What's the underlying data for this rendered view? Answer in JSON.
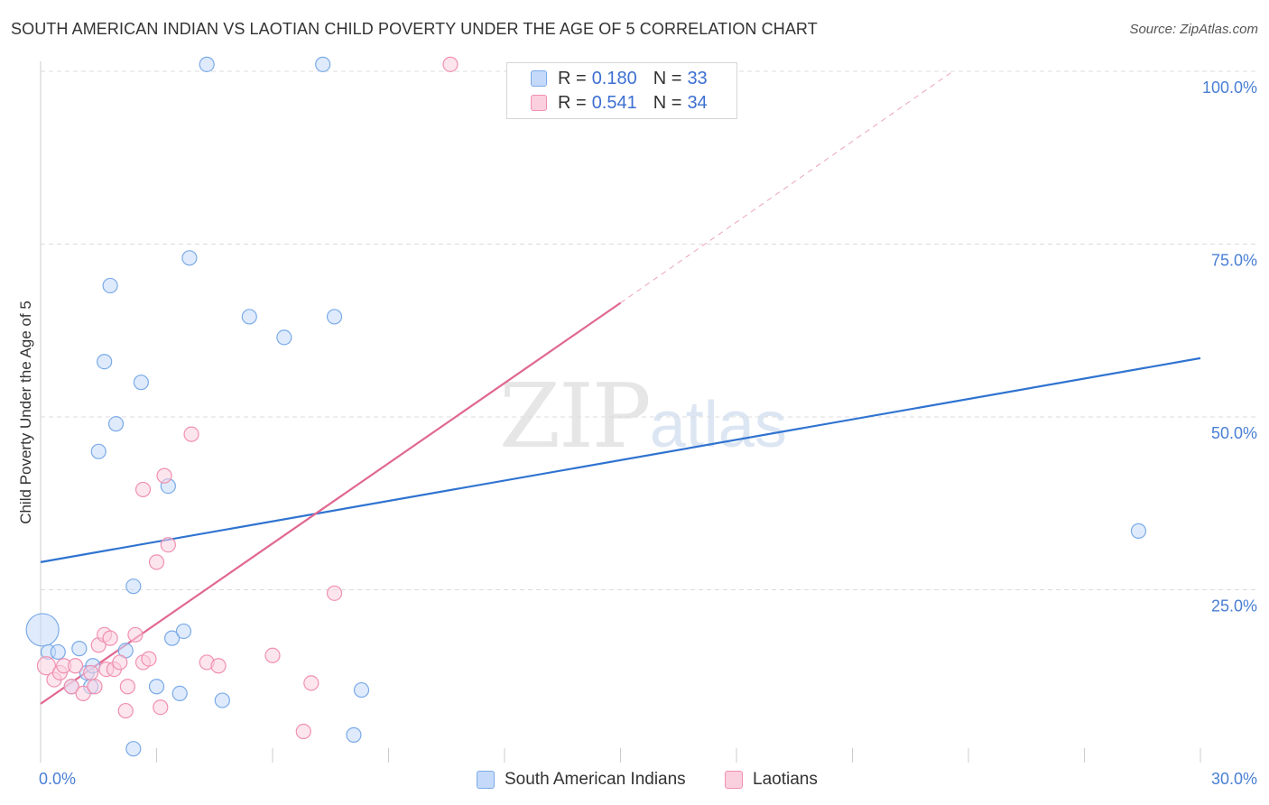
{
  "header": {
    "title": "SOUTH AMERICAN INDIAN VS LAOTIAN CHILD POVERTY UNDER THE AGE OF 5 CORRELATION CHART",
    "source": "Source: ZipAtlas.com"
  },
  "watermark": {
    "zip": "ZIP",
    "atlas": "atlas"
  },
  "legend": {
    "rows": [
      {
        "r_label": "R =",
        "r_value": "0.180",
        "n_label": "N =",
        "n_value": "33",
        "color": "#7aaae8",
        "fill": "#c5dafa"
      },
      {
        "r_label": "R =",
        "r_value": "0.541",
        "n_label": "N =",
        "n_value": "34",
        "color": "#f090b0",
        "fill": "#fbd0de"
      }
    ]
  },
  "bottom_legend": [
    {
      "label": "South American Indians",
      "color": "#7aaae8",
      "fill": "#c5dafa"
    },
    {
      "label": "Laotians",
      "color": "#f090b0",
      "fill": "#fbd0de"
    }
  ],
  "chart_data": {
    "type": "scatter",
    "title": "SOUTH AMERICAN INDIAN VS LAOTIAN CHILD POVERTY UNDER THE AGE OF 5 CORRELATION CHART",
    "xlabel": "",
    "ylabel": "Child Poverty Under the Age of 5",
    "xlim": [
      0,
      30
    ],
    "ylim": [
      0,
      100
    ],
    "x_tick_labels": [
      {
        "value": 0,
        "label": "0.0%"
      },
      {
        "value": 30,
        "label": "30.0%"
      }
    ],
    "y_tick_labels": [
      {
        "value": 25,
        "label": "25.0%"
      },
      {
        "value": 50,
        "label": "50.0%"
      },
      {
        "value": 75,
        "label": "75.0%"
      },
      {
        "value": 100,
        "label": "100.0%"
      }
    ],
    "grid": true,
    "series": [
      {
        "name": "South American Indians",
        "color": "#7aaae8",
        "fill": "#c5dafa",
        "line_color": "#2f73d0",
        "trend": {
          "x": [
            0,
            30
          ],
          "y": [
            29,
            58.5
          ],
          "dashed_extension": false
        },
        "points": [
          [
            0.05,
            19.2,
            18
          ],
          [
            0.2,
            16,
            8
          ],
          [
            0.45,
            16,
            8
          ],
          [
            1.0,
            16.5,
            8
          ],
          [
            0.8,
            11,
            8
          ],
          [
            1.2,
            13,
            8
          ],
          [
            1.3,
            11,
            8
          ],
          [
            1.35,
            14,
            8
          ],
          [
            2.2,
            16.2,
            8
          ],
          [
            3.0,
            11,
            8
          ],
          [
            3.6,
            10,
            8
          ],
          [
            2.4,
            2,
            8
          ],
          [
            4.7,
            9,
            8
          ],
          [
            8.1,
            4,
            8
          ],
          [
            8.3,
            10.5,
            8
          ],
          [
            3.4,
            18,
            8
          ],
          [
            3.3,
            40,
            8
          ],
          [
            3.7,
            19,
            8
          ],
          [
            2.4,
            25.5,
            8
          ],
          [
            1.5,
            45,
            8
          ],
          [
            1.95,
            49,
            8
          ],
          [
            1.65,
            58,
            8
          ],
          [
            2.6,
            55,
            8
          ],
          [
            1.8,
            69,
            8
          ],
          [
            3.85,
            73,
            8
          ],
          [
            5.4,
            64.5,
            8
          ],
          [
            6.3,
            61.5,
            8
          ],
          [
            7.6,
            64.5,
            8
          ],
          [
            4.3,
            101,
            8
          ],
          [
            7.3,
            101,
            8
          ],
          [
            28.4,
            33.5,
            8
          ]
        ]
      },
      {
        "name": "Laotians",
        "color": "#f090b0",
        "fill": "#fbd0de",
        "line_color": "#e06890",
        "trend": {
          "x": [
            0,
            15
          ],
          "y": [
            8.5,
            66.5
          ],
          "dashed_extension": true,
          "dashed_to": [
            23.6,
            100
          ]
        },
        "points": [
          [
            0.15,
            14,
            10
          ],
          [
            0.35,
            12,
            8
          ],
          [
            0.5,
            13,
            8
          ],
          [
            0.6,
            14,
            8
          ],
          [
            0.8,
            11,
            8
          ],
          [
            0.9,
            14,
            8
          ],
          [
            1.1,
            10,
            8
          ],
          [
            1.3,
            13,
            8
          ],
          [
            1.4,
            11,
            8
          ],
          [
            1.5,
            17,
            8
          ],
          [
            1.65,
            18.5,
            8
          ],
          [
            1.7,
            13.5,
            8
          ],
          [
            1.9,
            13.5,
            8
          ],
          [
            1.8,
            18,
            8
          ],
          [
            2.05,
            14.5,
            8
          ],
          [
            2.25,
            11,
            8
          ],
          [
            2.45,
            18.5,
            8
          ],
          [
            2.65,
            14.5,
            8
          ],
          [
            2.8,
            15,
            8
          ],
          [
            2.2,
            7.5,
            8
          ],
          [
            3.1,
            8,
            8
          ],
          [
            3.0,
            29,
            8
          ],
          [
            3.2,
            41.5,
            8
          ],
          [
            3.3,
            31.5,
            8
          ],
          [
            2.65,
            39.5,
            8
          ],
          [
            3.9,
            47.5,
            8
          ],
          [
            4.3,
            14.5,
            8
          ],
          [
            4.6,
            14,
            8
          ],
          [
            6.0,
            15.5,
            8
          ],
          [
            7.0,
            11.5,
            8
          ],
          [
            6.8,
            4.5,
            8
          ],
          [
            7.6,
            24.5,
            8
          ],
          [
            10.6,
            101,
            8
          ]
        ]
      }
    ]
  }
}
